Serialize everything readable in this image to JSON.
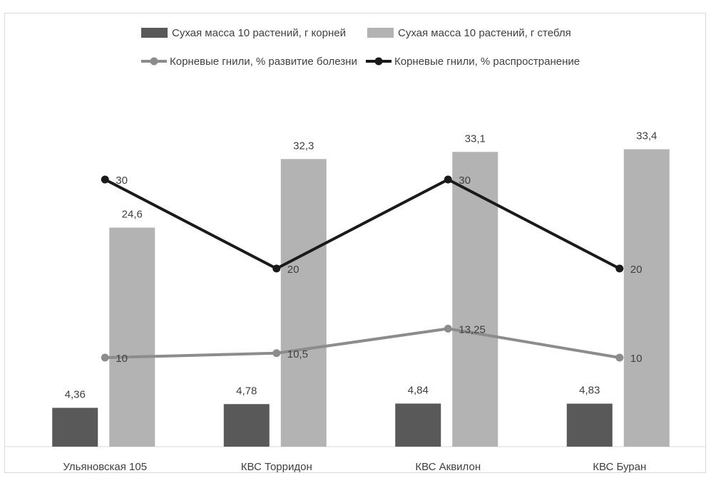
{
  "chart_data": {
    "type": "bar",
    "categories": [
      "Ульяновская 105",
      "КВС Торридон",
      "КВС Аквилон",
      "КВС Буран"
    ],
    "series": [
      {
        "name": "Сухая масса 10 растений, г корней",
        "kind": "bar",
        "color": "#595959",
        "values": [
          4.36,
          4.78,
          4.84,
          4.83
        ],
        "labels": [
          "4,36",
          "4,78",
          "4,84",
          "4,83"
        ]
      },
      {
        "name": "Сухая масса 10 растений, г стебля",
        "kind": "bar",
        "color": "#b3b3b3",
        "values": [
          24.6,
          32.3,
          33.1,
          33.4
        ],
        "labels": [
          "24,6",
          "32,3",
          "33,1",
          "33,4"
        ]
      },
      {
        "name": "Корневые гнили, % развитие болезни",
        "kind": "line",
        "color": "#8c8c8c",
        "values": [
          10,
          10.5,
          13.25,
          10
        ],
        "labels": [
          "10",
          "10,5",
          "13,25",
          "10"
        ]
      },
      {
        "name": "Корневые гнили, % распространение",
        "kind": "line",
        "color": "#1a1a1a",
        "values": [
          30,
          20,
          30,
          20
        ],
        "labels": [
          "30",
          "20",
          "30",
          "20"
        ]
      }
    ],
    "ylim": [
      0,
      40
    ],
    "grid": false,
    "legend_position": "top"
  }
}
